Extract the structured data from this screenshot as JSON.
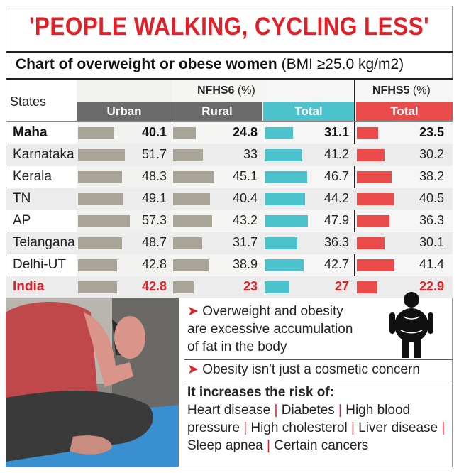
{
  "headline": "'PEOPLE WALKING, CYCLING LESS'",
  "subtitle": {
    "bold": "Chart of overweight or obese women",
    "normal": "(BMI ≥25.0 kg/m2)"
  },
  "chart_data": {
    "type": "table",
    "title": "Chart of overweight or obese women (BMI ≥25.0 kg/m2)",
    "row_header": "States",
    "groups": [
      {
        "name": "NFHS6",
        "unit": "(%)",
        "columns": [
          "Urban",
          "Rural",
          "Total"
        ]
      },
      {
        "name": "NFHS5",
        "unit": "(%)",
        "columns": [
          "Total"
        ]
      }
    ],
    "series": [
      {
        "name": "NFHS6 Urban",
        "color": "#a8a498",
        "values": [
          40.1,
          51.7,
          48.3,
          49.1,
          57.3,
          48.7,
          42.8,
          42.8
        ]
      },
      {
        "name": "NFHS6 Rural",
        "color": "#a8a498",
        "values": [
          24.8,
          33,
          45.1,
          40.4,
          43.2,
          31.7,
          38.9,
          23
        ]
      },
      {
        "name": "NFHS6 Total",
        "color": "#4cc3cc",
        "values": [
          31.1,
          41.2,
          46.7,
          44.2,
          47.9,
          36.3,
          42.7,
          27
        ]
      },
      {
        "name": "NFHS5 Total",
        "color": "#ea4a4a",
        "values": [
          23.5,
          30.2,
          38.2,
          40.5,
          36.3,
          30.1,
          41.4,
          22.9
        ]
      }
    ],
    "categories": [
      "Maha",
      "Karnataka",
      "Kerala",
      "TN",
      "AP",
      "Telangana",
      "Delhi-UT",
      "India"
    ],
    "value_labels": [
      [
        "40.1",
        "51.7",
        "48.3",
        "49.1",
        "57.3",
        "48.7",
        "42.8",
        "42.8"
      ],
      [
        "24.8",
        "33",
        "45.1",
        "40.4",
        "43.2",
        "31.7",
        "38.9",
        "23"
      ],
      [
        "31.1",
        "41.2",
        "46.7",
        "44.2",
        "47.9",
        "36.3",
        "42.7",
        "27"
      ],
      [
        "23.5",
        "30.2",
        "38.2",
        "40.5",
        "36.3",
        "30.1",
        "41.4",
        "22.9"
      ]
    ]
  },
  "info": {
    "point1": "Overweight and obesity are excessive accumulation of fat in the body",
    "point1_lines": [
      "Overweight and obesity",
      "are excessive accumulation",
      "of fat in the body"
    ],
    "point2": "Obesity isn't just a cosmetic concern",
    "risk_title": "It increases the risk of:",
    "risks": [
      "Heart disease",
      "Diabetes",
      "High blood pressure",
      "High cholesterol",
      "Liver disease",
      "Sleep apnea",
      "Certain cancers"
    ]
  },
  "colors": {
    "headline": "#e21f26",
    "nfhs6_bar": "#a8a498",
    "nfhs6_header": "#6b6b6b",
    "nfhs6_total": "#4cc3cc",
    "nfhs5": "#ea4a4a",
    "highlight": "#e21f26"
  },
  "icons": [
    "person-silhouette-icon",
    "arrow-bullet-icon"
  ]
}
